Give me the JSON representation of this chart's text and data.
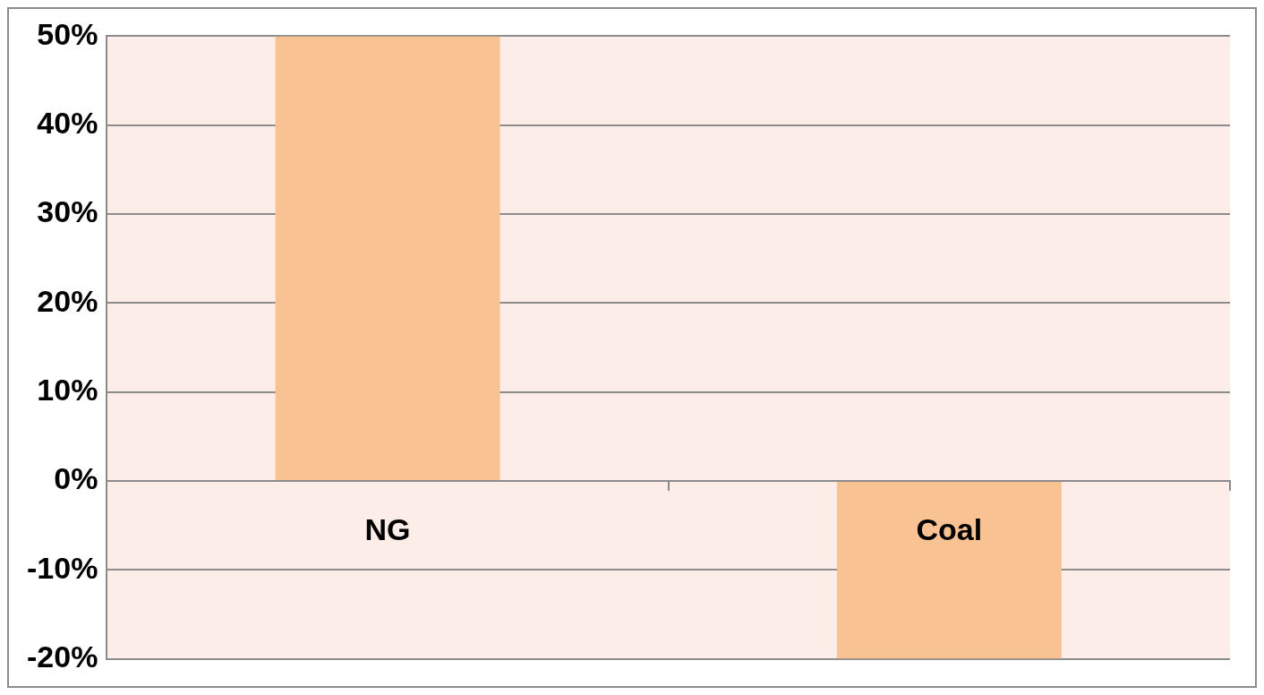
{
  "chart_data": {
    "type": "bar",
    "categories": [
      "NG",
      "Coal"
    ],
    "values": [
      50,
      -20
    ],
    "color": "#f9c293",
    "ylim": [
      -20,
      50
    ],
    "yticks": [
      {
        "value": -20,
        "label": "-20%"
      },
      {
        "value": -10,
        "label": "-10%"
      },
      {
        "value": 0,
        "label": "0%"
      },
      {
        "value": 10,
        "label": "10%"
      },
      {
        "value": 20,
        "label": "20%"
      },
      {
        "value": 30,
        "label": "30%"
      },
      {
        "value": 40,
        "label": "40%"
      },
      {
        "value": 50,
        "label": "50%"
      }
    ],
    "grid": "y",
    "legend": false
  }
}
